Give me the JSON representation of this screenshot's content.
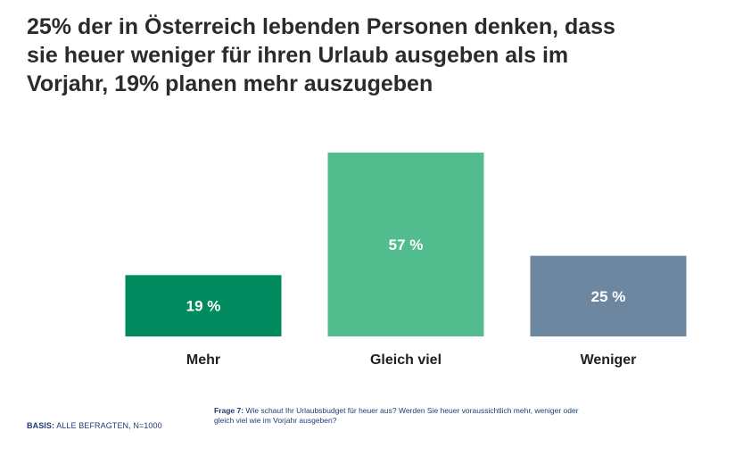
{
  "title_lines": [
    "25% der in Österreich lebenden Personen denken, dass",
    "sie heuer weniger für ihren Urlaub ausgeben als im",
    "Vorjahr, 19% planen mehr auszugeben"
  ],
  "chart_data": {
    "type": "bar",
    "title": "25% der in Österreich lebenden Personen denken, dass sie heuer weniger für ihren Urlaub ausgeben als im Vorjahr, 19% planen mehr auszugeben",
    "categories": [
      "Mehr",
      "Gleich viel",
      "Weniger"
    ],
    "values": [
      19,
      57,
      25
    ],
    "value_labels": [
      "19 %",
      "57 %",
      "25 %"
    ],
    "colors": [
      "#008a5e",
      "#52bc8e",
      "#6d87a0"
    ],
    "unit": "%",
    "ylim": [
      0,
      57
    ],
    "xlabel": "",
    "ylabel": "",
    "grid": false,
    "legend": "none"
  },
  "footer": {
    "basis_label": "BASIS:",
    "basis_text": "ALLE BEFRAGTEN, N=1000",
    "question_label": "Frage 7:",
    "question_text": "Wie schaut Ihr Urlaubsbudget für heuer aus? Werden Sie heuer voraussichtlich mehr, weniger oder gleich viel wie im Vorjahr ausgeben?"
  }
}
